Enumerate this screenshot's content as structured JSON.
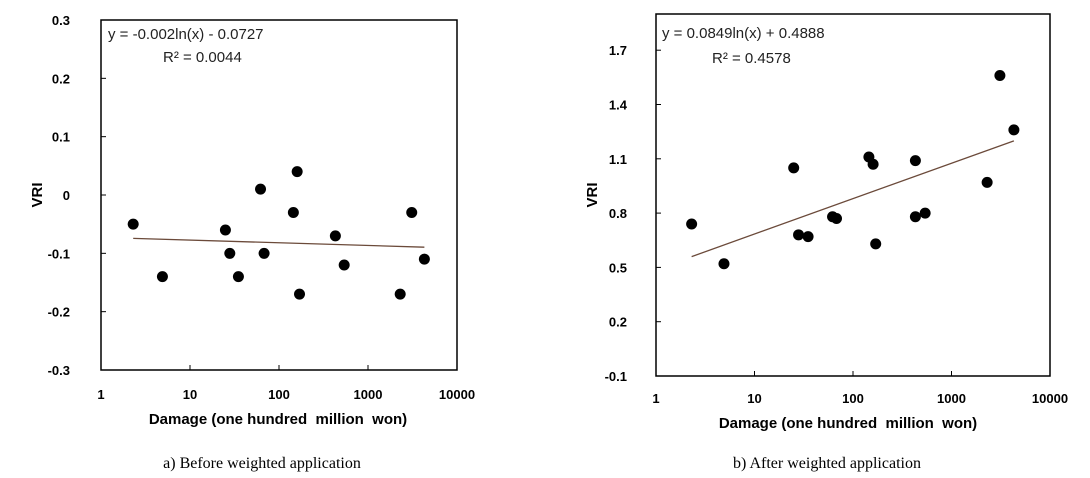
{
  "chart_data": [
    {
      "type": "scatter",
      "caption": "a) Before weighted application",
      "xlabel": "Damage (one hundred  million  won)",
      "ylabel": "VRI",
      "xscale": "log",
      "xlim": [
        1,
        10000
      ],
      "ylim": [
        -0.3,
        0.3
      ],
      "xticks": [
        "1",
        "10",
        "100",
        "1000",
        "10000"
      ],
      "yticks": [
        "-0.3",
        "-0.2",
        "-0.1",
        "0",
        "0.1",
        "0.2",
        "0.3"
      ],
      "ytick_values": [
        -0.3,
        -0.2,
        -0.1,
        0,
        0.1,
        0.2,
        0.3
      ],
      "xtick_values": [
        1,
        10,
        100,
        1000,
        10000
      ],
      "equation": "y = -0.002ln(x) - 0.0727",
      "r_squared": "R² = 0.0044",
      "trendline": {
        "slope": -0.002,
        "intercept": -0.0727,
        "x_range": [
          2.3,
          4300
        ]
      },
      "points": [
        {
          "x": 2.3,
          "y": -0.05
        },
        {
          "x": 4.9,
          "y": -0.14
        },
        {
          "x": 25,
          "y": -0.06
        },
        {
          "x": 28,
          "y": -0.1
        },
        {
          "x": 35,
          "y": -0.14
        },
        {
          "x": 62,
          "y": 0.01
        },
        {
          "x": 68,
          "y": -0.1
        },
        {
          "x": 145,
          "y": -0.03
        },
        {
          "x": 160,
          "y": 0.04
        },
        {
          "x": 170,
          "y": -0.17
        },
        {
          "x": 430,
          "y": -0.07
        },
        {
          "x": 540,
          "y": -0.12
        },
        {
          "x": 2300,
          "y": -0.17
        },
        {
          "x": 3100,
          "y": -0.03
        },
        {
          "x": 4300,
          "y": -0.11
        }
      ]
    },
    {
      "type": "scatter",
      "caption": "b) After weighted application",
      "xlabel": "Damage (one hundred  million  won)",
      "ylabel": "VRI",
      "xscale": "log",
      "xlim": [
        1,
        10000
      ],
      "ylim": [
        -0.1,
        1.9
      ],
      "xticks": [
        "1",
        "10",
        "100",
        "1000",
        "10000"
      ],
      "yticks": [
        "-0.1",
        "0.2",
        "0.5",
        "0.8",
        "1.1",
        "1.4",
        "1.7"
      ],
      "ytick_values": [
        -0.1,
        0.2,
        0.5,
        0.8,
        1.1,
        1.4,
        1.7
      ],
      "xtick_values": [
        1,
        10,
        100,
        1000,
        10000
      ],
      "equation": "y = 0.0849ln(x) + 0.4888",
      "r_squared": "R² = 0.4578",
      "trendline": {
        "slope": 0.0849,
        "intercept": 0.4888,
        "x_range": [
          2.3,
          4300
        ]
      },
      "points": [
        {
          "x": 2.3,
          "y": 0.74
        },
        {
          "x": 4.9,
          "y": 0.52
        },
        {
          "x": 25,
          "y": 1.05
        },
        {
          "x": 28,
          "y": 0.68
        },
        {
          "x": 35,
          "y": 0.67
        },
        {
          "x": 62,
          "y": 0.78
        },
        {
          "x": 68,
          "y": 0.77
        },
        {
          "x": 145,
          "y": 1.11
        },
        {
          "x": 160,
          "y": 1.07
        },
        {
          "x": 170,
          "y": 0.63
        },
        {
          "x": 430,
          "y": 1.09
        },
        {
          "x": 430,
          "y": 0.78
        },
        {
          "x": 540,
          "y": 0.8
        },
        {
          "x": 2300,
          "y": 0.97
        },
        {
          "x": 3100,
          "y": 1.56
        },
        {
          "x": 4300,
          "y": 1.26
        }
      ]
    }
  ],
  "colors": {
    "point": "#000000",
    "trendline": "#6b4a3a",
    "frame": "#000000"
  }
}
